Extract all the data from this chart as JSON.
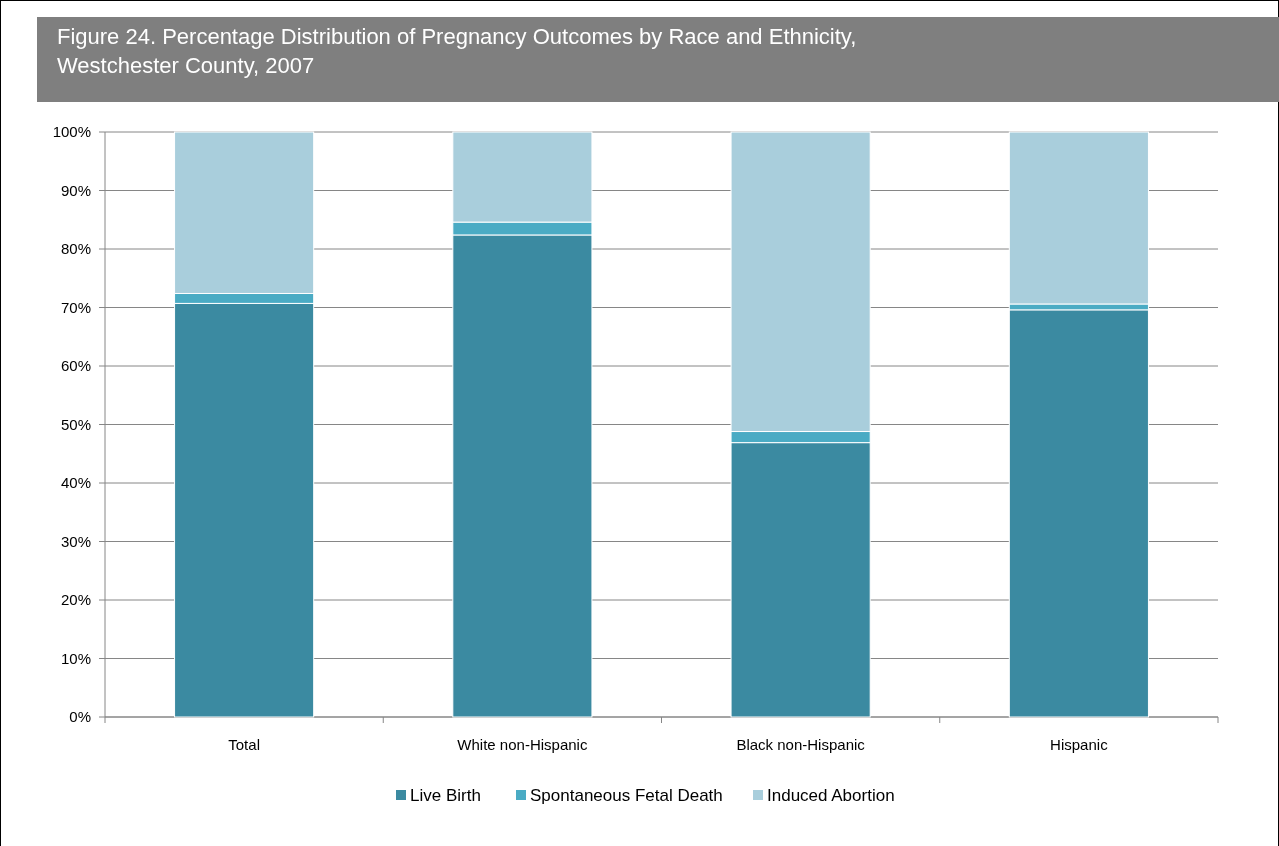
{
  "chart_data": {
    "type": "bar",
    "title": "Figure 24. Percentage Distribution of Pregnancy Outcomes by Race and Ethnicity, Westchester County, 2007",
    "categories": [
      "Total",
      "White non-Hispanic",
      "Black non-Hispanic",
      "Hispanic"
    ],
    "series": [
      {
        "name": "Live Birth",
        "color": "#3b8aa1",
        "values": [
          70.7,
          82.4,
          46.9,
          69.6
        ]
      },
      {
        "name": "Spontaneous Fetal Death",
        "color": "#4aabc4",
        "values": [
          1.7,
          2.2,
          1.9,
          1.0
        ]
      },
      {
        "name": "Induced Abortion",
        "color": "#a9cedc",
        "values": [
          27.6,
          15.4,
          51.2,
          29.4
        ]
      }
    ],
    "stacked": true,
    "ylim": [
      0,
      100
    ],
    "yticks": [
      {
        "value": 0,
        "label": "0%"
      },
      {
        "value": 10,
        "label": "10%"
      },
      {
        "value": 20,
        "label": "20%"
      },
      {
        "value": 30,
        "label": "30%"
      },
      {
        "value": 40,
        "label": "40%"
      },
      {
        "value": 50,
        "label": "50%"
      },
      {
        "value": 60,
        "label": "60%"
      },
      {
        "value": 70,
        "label": "70%"
      },
      {
        "value": 80,
        "label": "80%"
      },
      {
        "value": 90,
        "label": "90%"
      },
      {
        "value": 100,
        "label": "100%"
      }
    ],
    "grid": "y",
    "legend": "bottom"
  }
}
